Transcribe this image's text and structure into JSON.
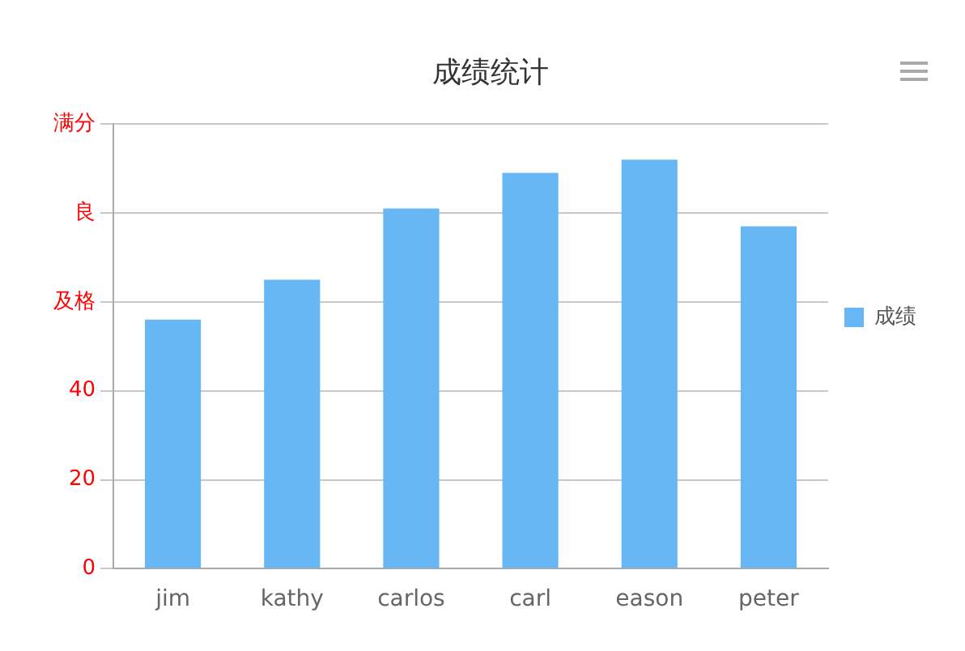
{
  "chart_data": {
    "type": "bar",
    "title": "成绩统计",
    "categories": [
      "jim",
      "kathy",
      "carlos",
      "carl",
      "eason",
      "peter"
    ],
    "series": [
      {
        "name": "成绩",
        "color": "#66b7f4",
        "values": [
          56,
          65,
          81,
          89,
          92,
          77
        ]
      }
    ],
    "ylim": [
      0,
      100
    ],
    "yticks": [
      0,
      20,
      40,
      {
        "value": 60,
        "label": "及格"
      },
      {
        "value": 80,
        "label": "良"
      },
      {
        "value": 100,
        "label": "满分"
      }
    ],
    "grid": "y",
    "legend": "right"
  }
}
